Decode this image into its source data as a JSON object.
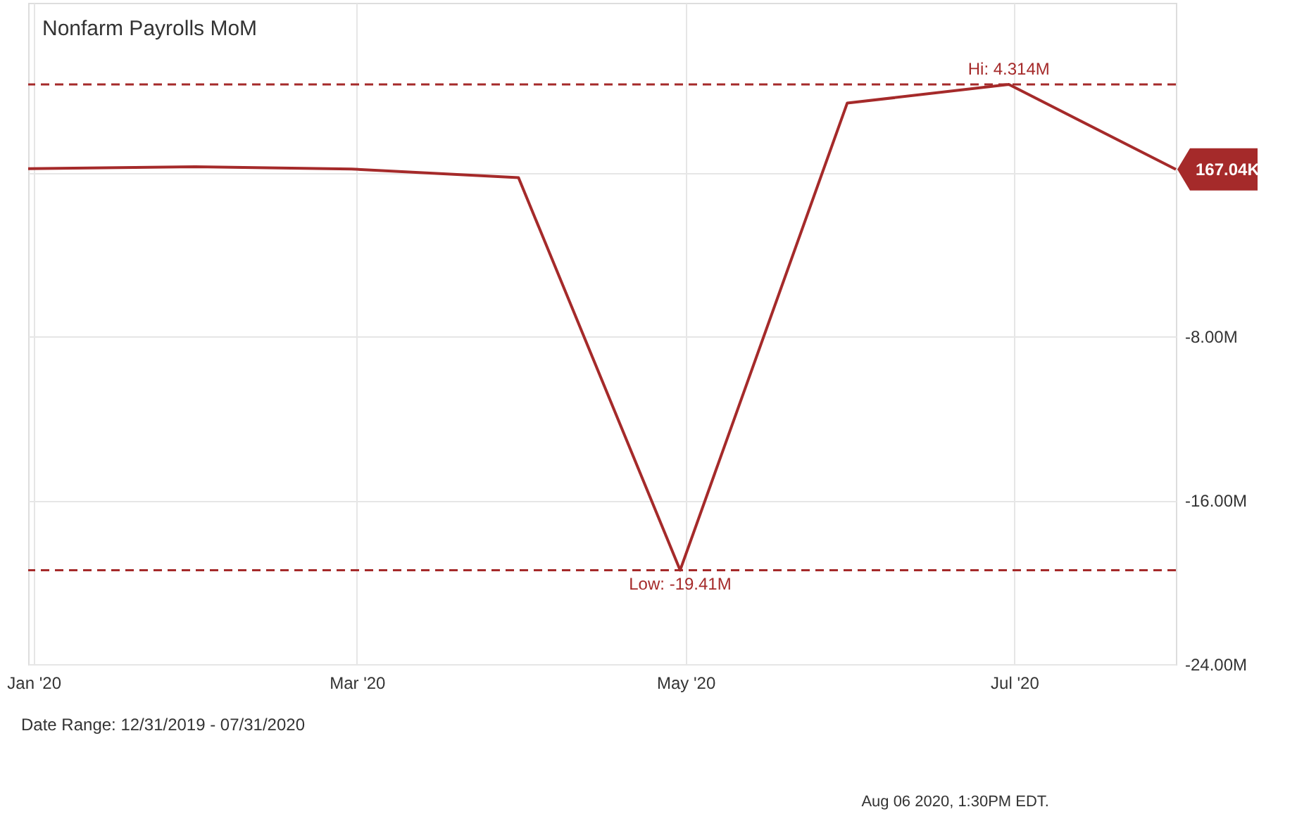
{
  "chart_data": {
    "type": "line",
    "title": "Nonfarm Payrolls MoM",
    "x": [
      "2019-12-31",
      "2020-01-31",
      "2020-02-29",
      "2020-03-31",
      "2020-04-30",
      "2020-05-31",
      "2020-06-30",
      "2020-07-31"
    ],
    "series": [
      {
        "color": "#a52a2a",
        "values": [
          0.2,
          0.29,
          0.18,
          -0.24,
          -19.41,
          3.4,
          4.314,
          0.16704
        ]
      }
    ],
    "xlim": [
      "2019-12-31",
      "2020-07-31"
    ],
    "xticks": [
      {
        "value": "2020-01-01",
        "label": "Jan '20"
      },
      {
        "value": "2020-03-01",
        "label": "Mar '20"
      },
      {
        "value": "2020-05-01",
        "label": "May '20"
      },
      {
        "value": "2020-07-01",
        "label": "Jul '20"
      }
    ],
    "ylim": [
      -24,
      8.3
    ],
    "yticks": [
      {
        "value": -24,
        "label": "-24.00M"
      },
      {
        "value": -16,
        "label": "-16.00M"
      },
      {
        "value": -8,
        "label": "-8.00M"
      },
      {
        "value": 0,
        "label": null
      }
    ],
    "ref_lines": [
      {
        "axis": "y",
        "value": 4.314,
        "label": "Hi: 4.314M",
        "color": "#a52a2a",
        "line_style": "dashed"
      },
      {
        "axis": "y",
        "value": -19.41,
        "label": "Low: -19.41M",
        "color": "#a52a2a",
        "line_style": "dashed"
      }
    ],
    "annotations": [
      {
        "text": "167.04K",
        "x": "2020-07-31",
        "y": 0.16704
      },
      "Date Range: 12/31/2019 - 07/31/2020",
      "Aug 06 2020, 1:30PM EDT."
    ],
    "grid": true,
    "marker": "none",
    "line_style": "solid"
  }
}
